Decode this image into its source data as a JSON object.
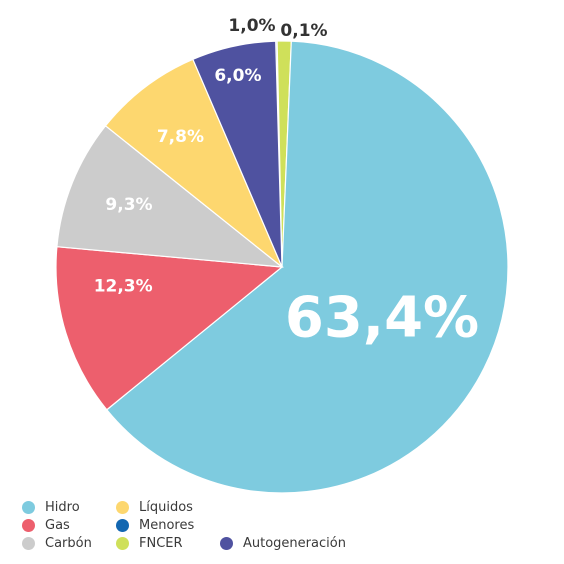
{
  "chart_data": {
    "type": "pie",
    "title": "",
    "slices": [
      {
        "label": "Hidro",
        "value": 63.4,
        "value_label": "63,4%",
        "color": "#7ecbdf",
        "label_color": "#ffffff"
      },
      {
        "label": "Gas",
        "value": 12.3,
        "value_label": "12,3%",
        "color": "#ed5f6d",
        "label_color": "#ffffff"
      },
      {
        "label": "Carbón",
        "value": 9.3,
        "value_label": "9,3%",
        "color": "#cccccc",
        "label_color": "#ffffff"
      },
      {
        "label": "Líquidos",
        "value": 7.8,
        "value_label": "7,8%",
        "color": "#fdd76f",
        "label_color": "#ffffff"
      },
      {
        "label": "Autogeneración",
        "value": 6.0,
        "value_label": "6,0%",
        "color": "#4f52a0",
        "label_color": "#ffffff"
      },
      {
        "label": "FNCER",
        "value": 1.0,
        "value_label": "1,0%",
        "color": "#cfe05a",
        "label_color": "#333333"
      },
      {
        "label": "Menores",
        "value": 0.1,
        "value_label": "0,1%",
        "color": "#1367b1",
        "label_color": "#333333"
      }
    ],
    "legend": {
      "position": "bottom-left",
      "items": [
        {
          "label": "Hidro",
          "color": "#7ecbdf"
        },
        {
          "label": "Gas",
          "color": "#ed5f6d"
        },
        {
          "label": "Carbón",
          "color": "#cccccc"
        },
        {
          "label": "Líquidos",
          "color": "#fdd76f"
        },
        {
          "label": "Menores",
          "color": "#1367b1"
        },
        {
          "label": "FNCER",
          "color": "#cfe05a"
        },
        {
          "label": "Autogeneración",
          "color": "#4f52a0"
        }
      ]
    }
  }
}
